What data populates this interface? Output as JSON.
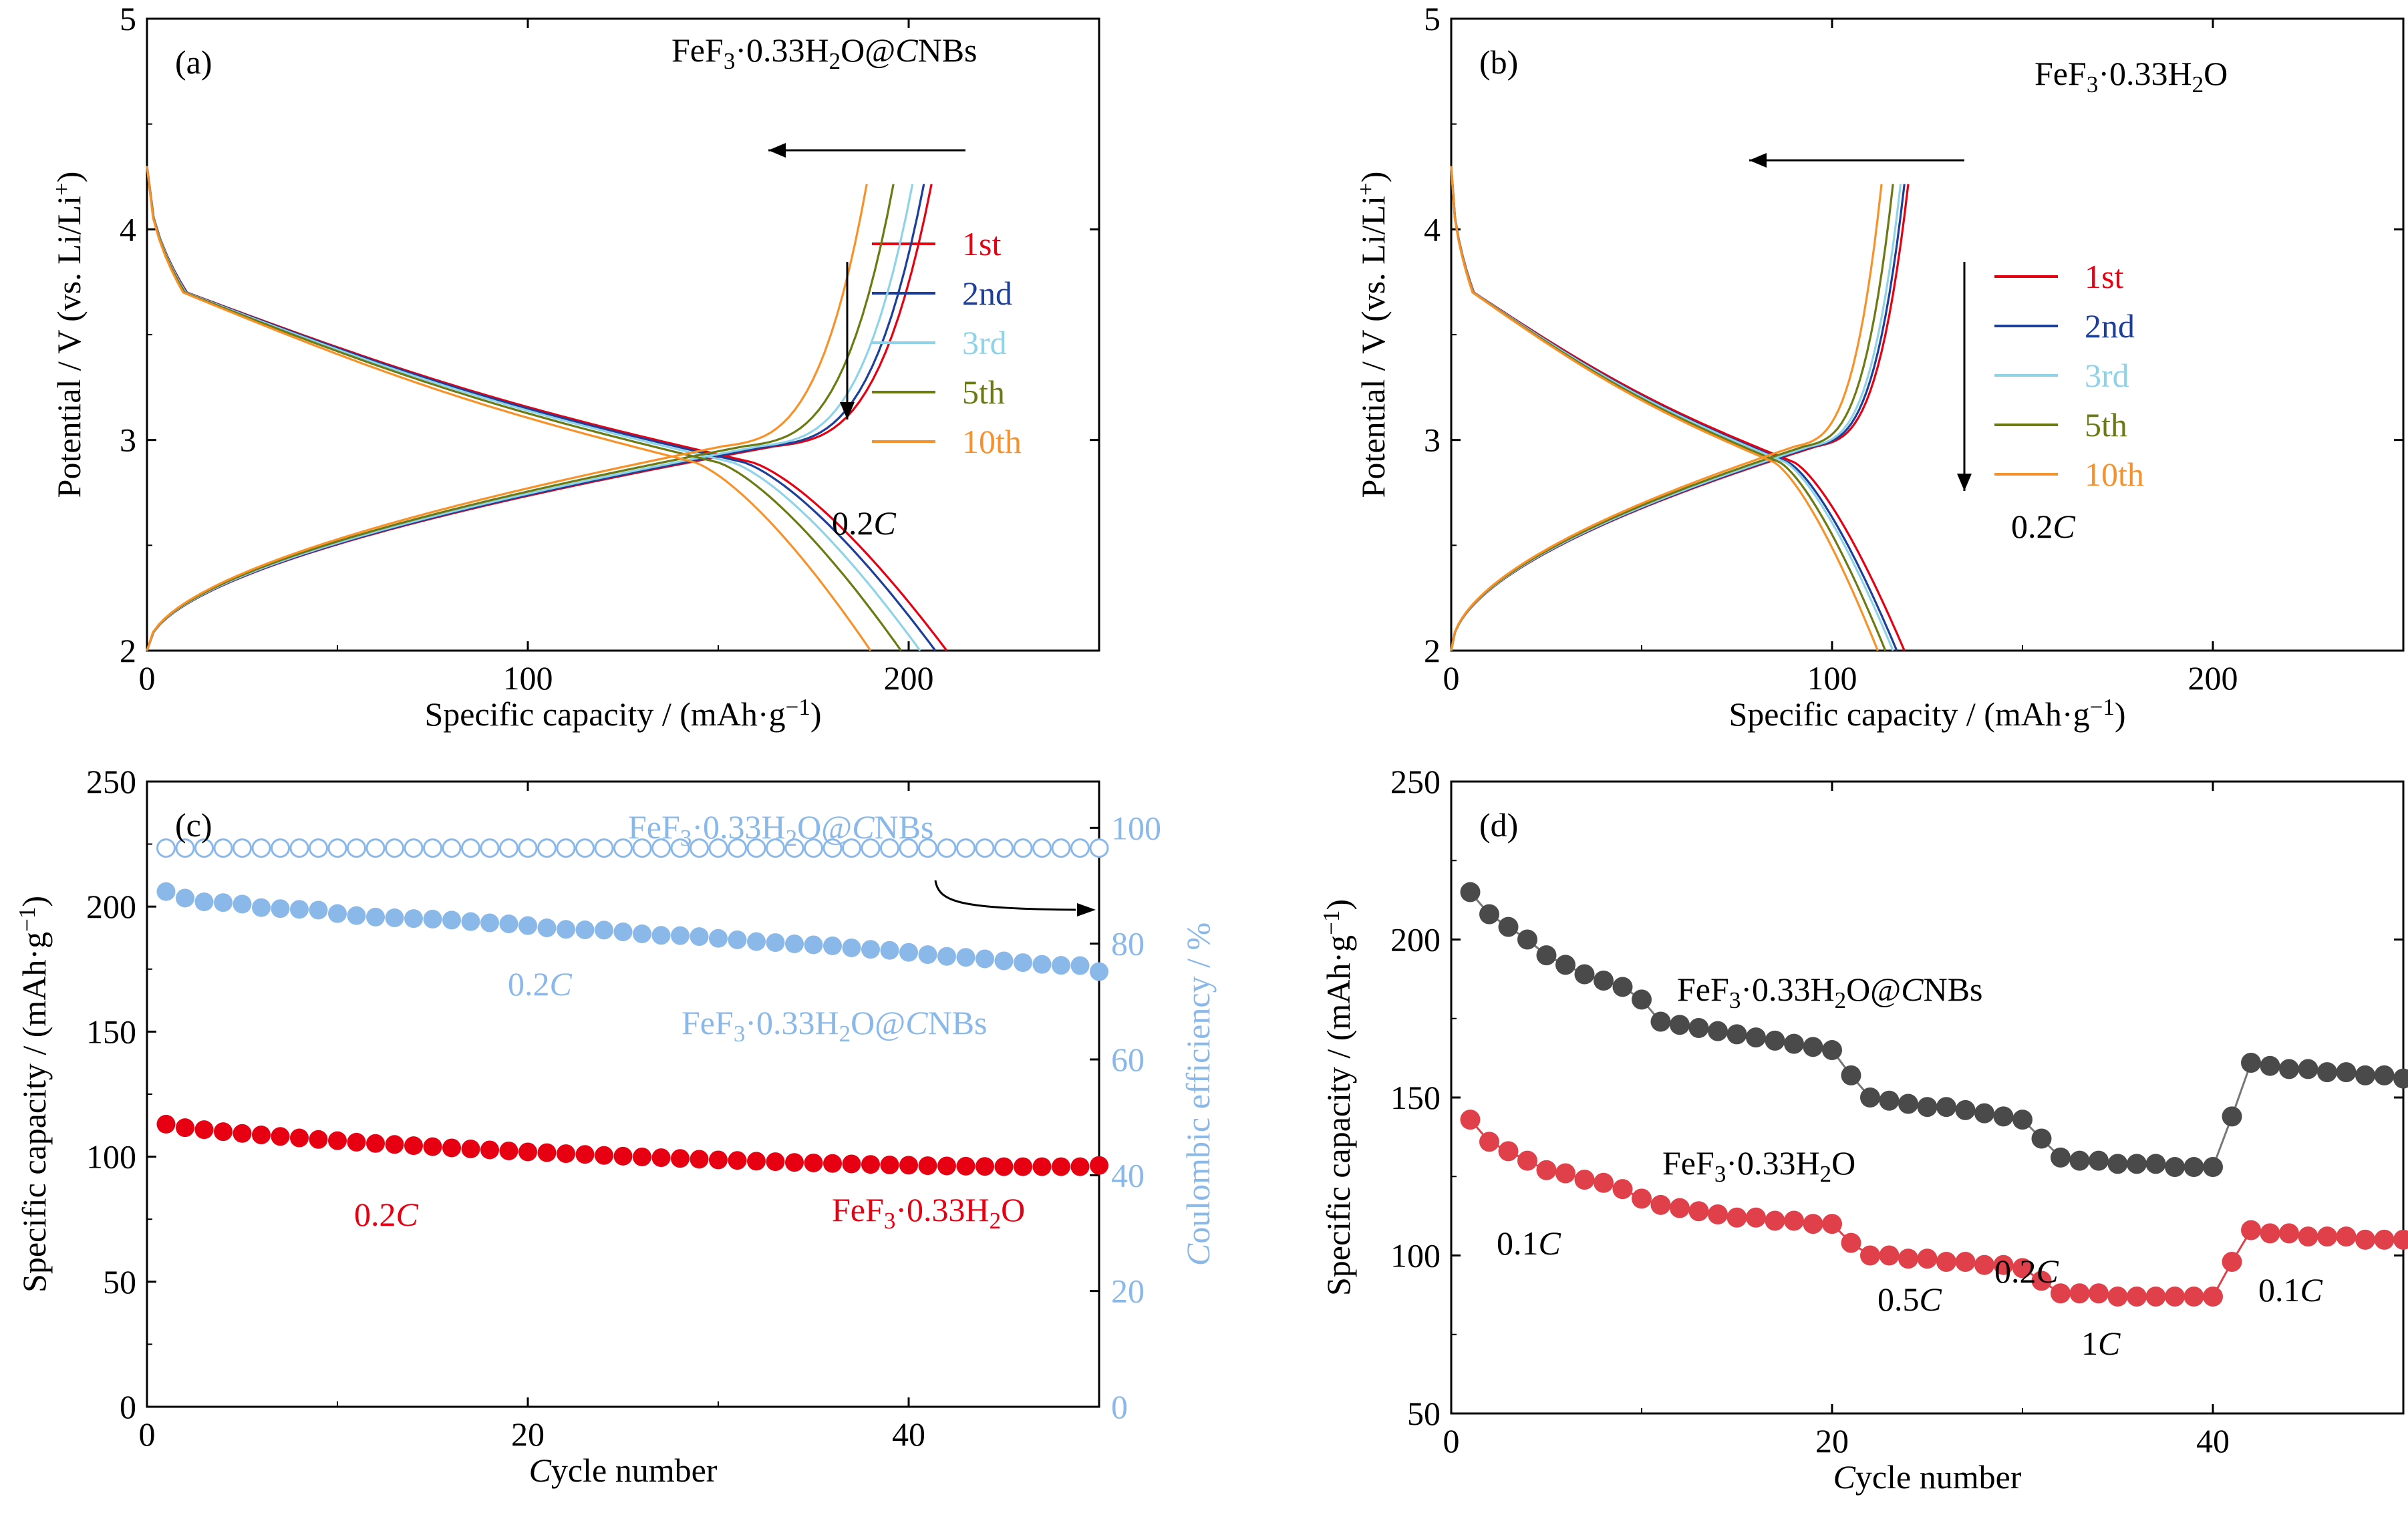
{
  "colors": {
    "c1": "#e60012",
    "c2": "#1d3f99",
    "c3": "#8fd3e8",
    "c5": "#6b7a12",
    "c10": "#f7922a",
    "ce": "#8ab8e8",
    "cnb": "#4a4a4a",
    "pristine": "#e0404a"
  },
  "chart_data": [
    {
      "panel": "a",
      "type": "line",
      "title": "FeF3·0.33H2O@CNBs",
      "xlabel": "Specific capacity / (mAh·g−1)",
      "ylabel": "Potential / V (vs. Li/Li+)",
      "xlim": [
        0,
        250
      ],
      "ylim": [
        2,
        5
      ],
      "xticks": [
        "0",
        "100",
        "200"
      ],
      "yticks": [
        "2",
        "3",
        "4",
        "5"
      ],
      "rate_label": "0.2C",
      "legend": [
        "1st",
        "2nd",
        "3rd",
        "5th",
        "10th"
      ],
      "series": [
        {
          "name": "1st",
          "charge_capacity": 206,
          "discharge_capacity": 210
        },
        {
          "name": "2nd",
          "charge_capacity": 204,
          "discharge_capacity": 207
        },
        {
          "name": "3rd",
          "charge_capacity": 201,
          "discharge_capacity": 203
        },
        {
          "name": "5th",
          "charge_capacity": 196,
          "discharge_capacity": 198
        },
        {
          "name": "10th",
          "charge_capacity": 189,
          "discharge_capacity": 190
        }
      ]
    },
    {
      "panel": "b",
      "type": "line",
      "title": "FeF3·0.33H2O",
      "xlabel": "Specific capacity / (mAh·g−1)",
      "ylabel": "Potential / V (vs. Li/Li+)",
      "xlim": [
        0,
        250
      ],
      "ylim": [
        2,
        5
      ],
      "xticks": [
        "0",
        "100",
        "200"
      ],
      "yticks": [
        "2",
        "3",
        "4",
        "5"
      ],
      "rate_label": "0.2C",
      "legend": [
        "1st",
        "2nd",
        "3rd",
        "5th",
        "10th"
      ],
      "series": [
        {
          "name": "1st",
          "charge_capacity": 120,
          "discharge_capacity": 119
        },
        {
          "name": "2nd",
          "charge_capacity": 119,
          "discharge_capacity": 117
        },
        {
          "name": "3rd",
          "charge_capacity": 118,
          "discharge_capacity": 116
        },
        {
          "name": "5th",
          "charge_capacity": 116,
          "discharge_capacity": 114
        },
        {
          "name": "10th",
          "charge_capacity": 113,
          "discharge_capacity": 112
        }
      ]
    },
    {
      "panel": "c",
      "type": "scatter",
      "xlabel": "Cycle number",
      "ylabel": "Specific capacity / (mAh·g−1)",
      "y2label": "Coulombic efficiency / %",
      "xlim": [
        0,
        50
      ],
      "ylim": [
        0,
        250
      ],
      "y2lim": [
        0,
        108
      ],
      "xticks": [
        "0",
        "20",
        "40"
      ],
      "yticks": [
        "0",
        "50",
        "100",
        "150",
        "200",
        "250"
      ],
      "y2ticks": [
        "0",
        "20",
        "40",
        "60",
        "80",
        "100"
      ],
      "annotations": [
        "FeF3·0.33H2O@CNBs",
        "0.2C",
        "FeF3·0.33H2O@CNBs",
        "0.2C",
        "FeF3·0.33H2O"
      ],
      "series": [
        {
          "name": "FeF3·0.33H2O@CNBs",
          "axis": "left",
          "cycles": [
            1,
            50
          ],
          "values": [
            206,
            203.4,
            201.9,
            201.6,
            201.0,
            199.6,
            199.2,
            198.9,
            198.6,
            197.2,
            196.4,
            195.8,
            195.5,
            195.2,
            195.0,
            194.6,
            194.0,
            193.5,
            193.1,
            192.4,
            191.5,
            190.9,
            190.7,
            190.6,
            189.9,
            189.1,
            188.5,
            188.4,
            188.0,
            187.3,
            186.7,
            186.0,
            185.6,
            185.1,
            184.7,
            184.3,
            183.5,
            182.9,
            182.5,
            181.7,
            180.8,
            180.1,
            179.7,
            179.1,
            178.3,
            177.6,
            176.9,
            176.5,
            176.4,
            174.0
          ]
        },
        {
          "name": "FeF3·0.33H2O",
          "axis": "left",
          "cycles": [
            1,
            50
          ],
          "values": [
            113,
            111.6,
            110.8,
            110.0,
            109.3,
            108.7,
            108.1,
            107.5,
            106.9,
            106.4,
            105.8,
            105.3,
            104.9,
            104.4,
            104.0,
            103.5,
            103.1,
            102.7,
            102.3,
            101.9,
            101.6,
            101.2,
            100.9,
            100.5,
            100.2,
            99.9,
            99.6,
            99.3,
            99.0,
            98.7,
            98.5,
            98.2,
            98.0,
            97.7,
            97.5,
            97.3,
            97.1,
            96.9,
            96.7,
            96.6,
            96.4,
            96.3,
            96.2,
            96.1,
            96.0,
            96.0,
            96.0,
            96.0,
            96.0,
            96.5
          ]
        },
        {
          "name": "Coulombic efficiency",
          "axis": "right",
          "cycles": [
            1,
            50
          ],
          "value": 96.5
        }
      ]
    },
    {
      "panel": "d",
      "type": "scatter",
      "xlabel": "Cycle number",
      "ylabel": "Specific capacity / (mAh·g−1)",
      "xlim": [
        0,
        50
      ],
      "ylim": [
        50,
        250
      ],
      "xticks": [
        "0",
        "20",
        "40"
      ],
      "yticks": [
        "50",
        "100",
        "150",
        "200",
        "250"
      ],
      "rate_labels": [
        "0.1C",
        "0.2C",
        "0.5C",
        "1C",
        "0.1C"
      ],
      "series": [
        {
          "name": "FeF3·0.33H2O@CNBs",
          "cycles": [
            1,
            50
          ],
          "values": [
            215,
            208,
            204,
            200,
            195,
            192,
            189,
            187,
            185,
            181,
            174,
            173,
            172,
            171,
            170,
            169,
            168,
            167,
            166,
            165,
            157,
            150,
            149,
            148,
            147,
            147,
            146,
            145,
            144,
            143,
            137,
            131,
            130,
            130,
            129,
            129,
            129,
            128,
            128,
            128,
            144,
            161,
            160,
            159,
            159,
            158,
            158,
            157,
            157,
            156
          ]
        },
        {
          "name": "FeF3·0.33H2O",
          "cycles": [
            1,
            50
          ],
          "values": [
            143,
            136,
            133,
            130,
            127,
            126,
            124,
            123,
            121,
            118,
            116,
            115,
            114,
            113,
            112,
            112,
            111,
            111,
            110,
            110,
            104,
            100,
            100,
            99,
            99,
            98,
            98,
            97,
            97,
            96,
            92,
            88,
            88,
            88,
            87,
            87,
            87,
            87,
            87,
            87,
            98,
            108,
            107,
            107,
            106,
            106,
            106,
            105,
            105,
            105
          ]
        }
      ]
    }
  ]
}
